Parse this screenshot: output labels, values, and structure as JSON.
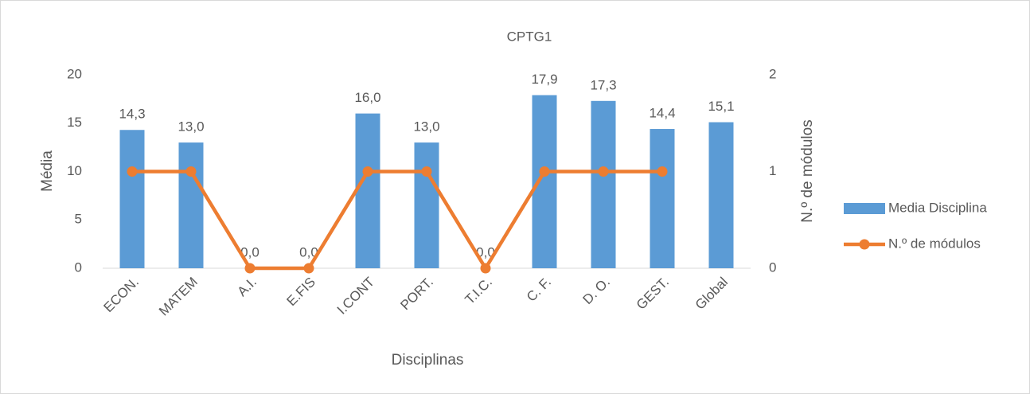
{
  "chart_data": {
    "type": "bar",
    "title": "CPTG1",
    "xlabel": "Disciplinas",
    "ylabel": "Média",
    "y2label": "N.º de módulos",
    "categories": [
      "ECON.",
      "MATEM",
      "A.I.",
      "E.FIS",
      "I.CONT",
      "PORT.",
      "T.I.C.",
      "C. F.",
      "D. O.",
      "GEST.",
      "Global"
    ],
    "series": [
      {
        "name": "Media Disciplina",
        "type": "bar",
        "color": "#5b9bd5",
        "values": [
          14.3,
          13.0,
          0,
          0,
          16.0,
          13.0,
          0,
          17.9,
          17.3,
          14.4,
          15.1
        ],
        "value_labels": [
          "14,3",
          "13,0",
          "0,0",
          "0,0",
          "16,0",
          "13,0",
          "0,0",
          "17,9",
          "17,3",
          "14,4",
          "15,1"
        ]
      },
      {
        "name": "N.º de módulos",
        "type": "line",
        "color": "#ed7d31",
        "axis": "y2",
        "values": [
          1,
          1,
          0,
          0,
          1,
          1,
          0,
          1,
          1,
          1,
          null
        ]
      }
    ],
    "ylim": [
      0,
      20
    ],
    "yticks": [
      0,
      5,
      10,
      15,
      20
    ],
    "y2lim": [
      0,
      2
    ],
    "y2ticks": [
      0,
      1,
      2
    ],
    "grid": false,
    "legend": "right"
  }
}
